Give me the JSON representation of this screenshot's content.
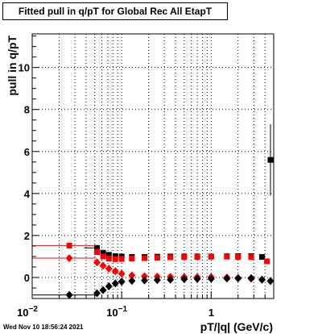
{
  "title": "Fitted pull in q/pT for Global Rec All EtapT",
  "timestamp": "Wed Nov 10 18:56:24 2021",
  "chart_data": {
    "type": "scatter",
    "title": "Fitted pull in q/pT for Global Rec All EtapT",
    "xlabel": "pT/|q| (GeV/c)",
    "ylabel": "pull in q/pT",
    "xscale": "log",
    "xlim": [
      0.01,
      5.0
    ],
    "ylim": [
      -1.0,
      11.6
    ],
    "grid": true,
    "x_ticks": [
      {
        "label": "10",
        "exp": "−2",
        "value": 0.01
      },
      {
        "label": "10",
        "exp": "−1",
        "value": 0.1
      },
      {
        "label": "1",
        "exp": "",
        "value": 1
      }
    ],
    "y_ticks": [
      0,
      2,
      4,
      6,
      8,
      10
    ],
    "series": [
      {
        "color": "#000000",
        "marker": "square",
        "points": [
          {
            "x": 0.053,
            "y": 1.41,
            "xerr": [
              0.015,
              0.0
            ]
          },
          {
            "x": 0.062,
            "y": 1.18
          },
          {
            "x": 0.072,
            "y": 1.08
          },
          {
            "x": 0.085,
            "y": 1.02
          },
          {
            "x": 0.1,
            "y": 1.0
          },
          {
            "x": 0.13,
            "y": 0.98
          },
          {
            "x": 0.18,
            "y": 0.98
          },
          {
            "x": 0.25,
            "y": 0.99
          },
          {
            "x": 0.35,
            "y": 1.0
          },
          {
            "x": 0.5,
            "y": 1.0
          },
          {
            "x": 0.7,
            "y": 1.0
          },
          {
            "x": 1.0,
            "y": 1.0
          },
          {
            "x": 1.5,
            "y": 1.01
          },
          {
            "x": 2.0,
            "y": 1.02
          },
          {
            "x": 2.8,
            "y": 1.02
          },
          {
            "x": 3.7,
            "y": 0.98
          },
          {
            "x": 4.6,
            "y": 5.6,
            "yerr": 1.7
          }
        ]
      },
      {
        "color": "#ff0000",
        "marker": "square",
        "points": [
          {
            "x": 0.026,
            "y": 1.52,
            "xerr": [
              0.016,
              0.026
            ]
          },
          {
            "x": 0.053,
            "y": 1.21
          },
          {
            "x": 0.062,
            "y": 1.0
          },
          {
            "x": 0.072,
            "y": 0.9
          },
          {
            "x": 0.085,
            "y": 0.87
          },
          {
            "x": 0.1,
            "y": 0.88
          },
          {
            "x": 0.13,
            "y": 0.9
          },
          {
            "x": 0.18,
            "y": 0.92
          },
          {
            "x": 0.25,
            "y": 0.94
          },
          {
            "x": 0.35,
            "y": 0.96
          },
          {
            "x": 0.5,
            "y": 0.97
          },
          {
            "x": 0.7,
            "y": 0.98
          },
          {
            "x": 1.0,
            "y": 0.99
          },
          {
            "x": 1.5,
            "y": 0.99
          },
          {
            "x": 2.0,
            "y": 0.98
          },
          {
            "x": 2.8,
            "y": 0.97
          },
          {
            "x": 4.2,
            "y": 0.77
          }
        ]
      },
      {
        "color": "#ff0000",
        "marker": "diamond",
        "points": [
          {
            "x": 0.026,
            "y": 0.92,
            "xerr": [
              0.016,
              0.026
            ]
          },
          {
            "x": 0.053,
            "y": 0.72
          },
          {
            "x": 0.062,
            "y": 0.56
          },
          {
            "x": 0.072,
            "y": 0.42
          },
          {
            "x": 0.085,
            "y": 0.3
          },
          {
            "x": 0.1,
            "y": 0.18
          },
          {
            "x": 0.13,
            "y": 0.1
          },
          {
            "x": 0.18,
            "y": 0.06
          },
          {
            "x": 0.25,
            "y": 0.04
          },
          {
            "x": 0.35,
            "y": 0.03
          },
          {
            "x": 0.5,
            "y": 0.02
          },
          {
            "x": 0.7,
            "y": 0.02
          },
          {
            "x": 1.0,
            "y": 0.02
          },
          {
            "x": 1.5,
            "y": 0.0
          },
          {
            "x": 2.0,
            "y": -0.02
          },
          {
            "x": 2.8,
            "y": -0.06
          },
          {
            "x": 3.7,
            "y": -0.1
          }
        ]
      },
      {
        "color": "#000000",
        "marker": "diamond",
        "points": [
          {
            "x": 0.026,
            "y": -0.83,
            "xerr": [
              0.016,
              0.026
            ]
          },
          {
            "x": 0.053,
            "y": -0.75
          },
          {
            "x": 0.062,
            "y": -0.6
          },
          {
            "x": 0.072,
            "y": -0.42
          },
          {
            "x": 0.085,
            "y": -0.28
          },
          {
            "x": 0.1,
            "y": -0.2
          },
          {
            "x": 0.13,
            "y": -0.16
          },
          {
            "x": 0.18,
            "y": -0.14
          },
          {
            "x": 0.25,
            "y": -0.12
          },
          {
            "x": 0.35,
            "y": -0.1
          },
          {
            "x": 0.5,
            "y": -0.08
          },
          {
            "x": 0.7,
            "y": -0.07
          },
          {
            "x": 1.0,
            "y": -0.06
          },
          {
            "x": 1.5,
            "y": -0.05
          },
          {
            "x": 2.0,
            "y": -0.04
          },
          {
            "x": 2.8,
            "y": -0.03
          },
          {
            "x": 3.7,
            "y": -0.1
          },
          {
            "x": 4.6,
            "y": -0.17
          }
        ]
      }
    ]
  }
}
